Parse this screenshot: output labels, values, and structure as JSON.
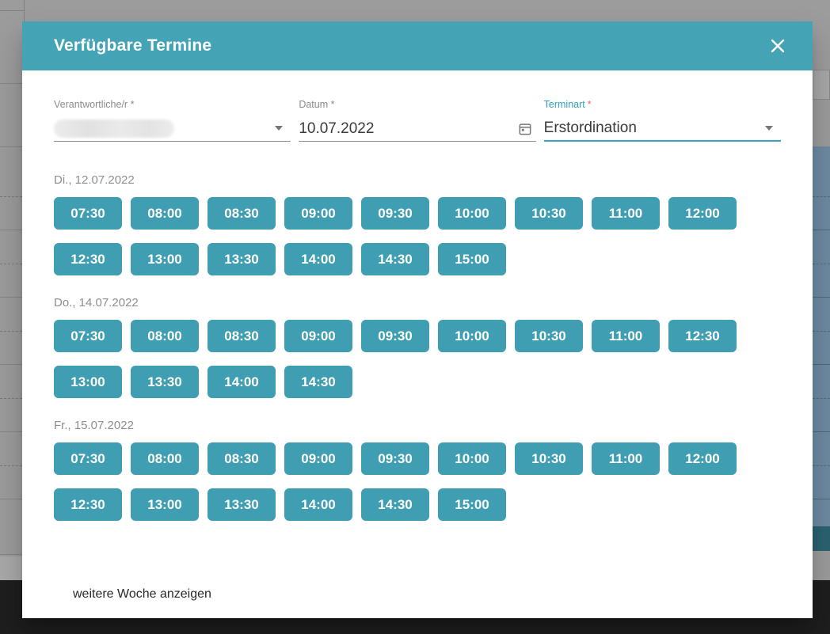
{
  "dialog": {
    "title": "Verfügbare Termine"
  },
  "fields": {
    "responsible": {
      "label": "Verantwortliche/r *",
      "value_redacted": true
    },
    "date": {
      "label": "Datum *",
      "value": "10.07.2022"
    },
    "type": {
      "label": "Terminart",
      "required_mark": "*",
      "value": "Erstordination"
    }
  },
  "day_groups": [
    {
      "label": "Di., 12.07.2022",
      "slots": [
        "07:30",
        "08:00",
        "08:30",
        "09:00",
        "09:30",
        "10:00",
        "10:30",
        "11:00",
        "12:00",
        "12:30",
        "13:00",
        "13:30",
        "14:00",
        "14:30",
        "15:00"
      ]
    },
    {
      "label": "Do., 14.07.2022",
      "slots": [
        "07:30",
        "08:00",
        "08:30",
        "09:00",
        "09:30",
        "10:00",
        "10:30",
        "11:00",
        "12:30",
        "13:00",
        "13:30",
        "14:00",
        "14:30"
      ]
    },
    {
      "label": "Fr., 15.07.2022",
      "slots": [
        "07:30",
        "08:00",
        "08:30",
        "09:00",
        "09:30",
        "10:00",
        "10:30",
        "11:00",
        "12:00",
        "12:30",
        "13:00",
        "13:30",
        "14:00",
        "14:30",
        "15:00"
      ]
    }
  ],
  "footer": {
    "more_week_label": "weitere Woche anzeigen"
  },
  "colors": {
    "header_teal": "#45a3b6",
    "slot_teal": "#3f9eb2",
    "terminart_label_teal": "#2fa3bd",
    "required_red": "#f0647c",
    "label_gray": "#8a8a8a",
    "value_dark": "#3a3a3a",
    "overlay_gray": "#9c9c9c",
    "background_blue_column": "#6e8ba2",
    "background_teal_cell": "#2b6371",
    "background_dark_bar": "#1e1e1e"
  }
}
